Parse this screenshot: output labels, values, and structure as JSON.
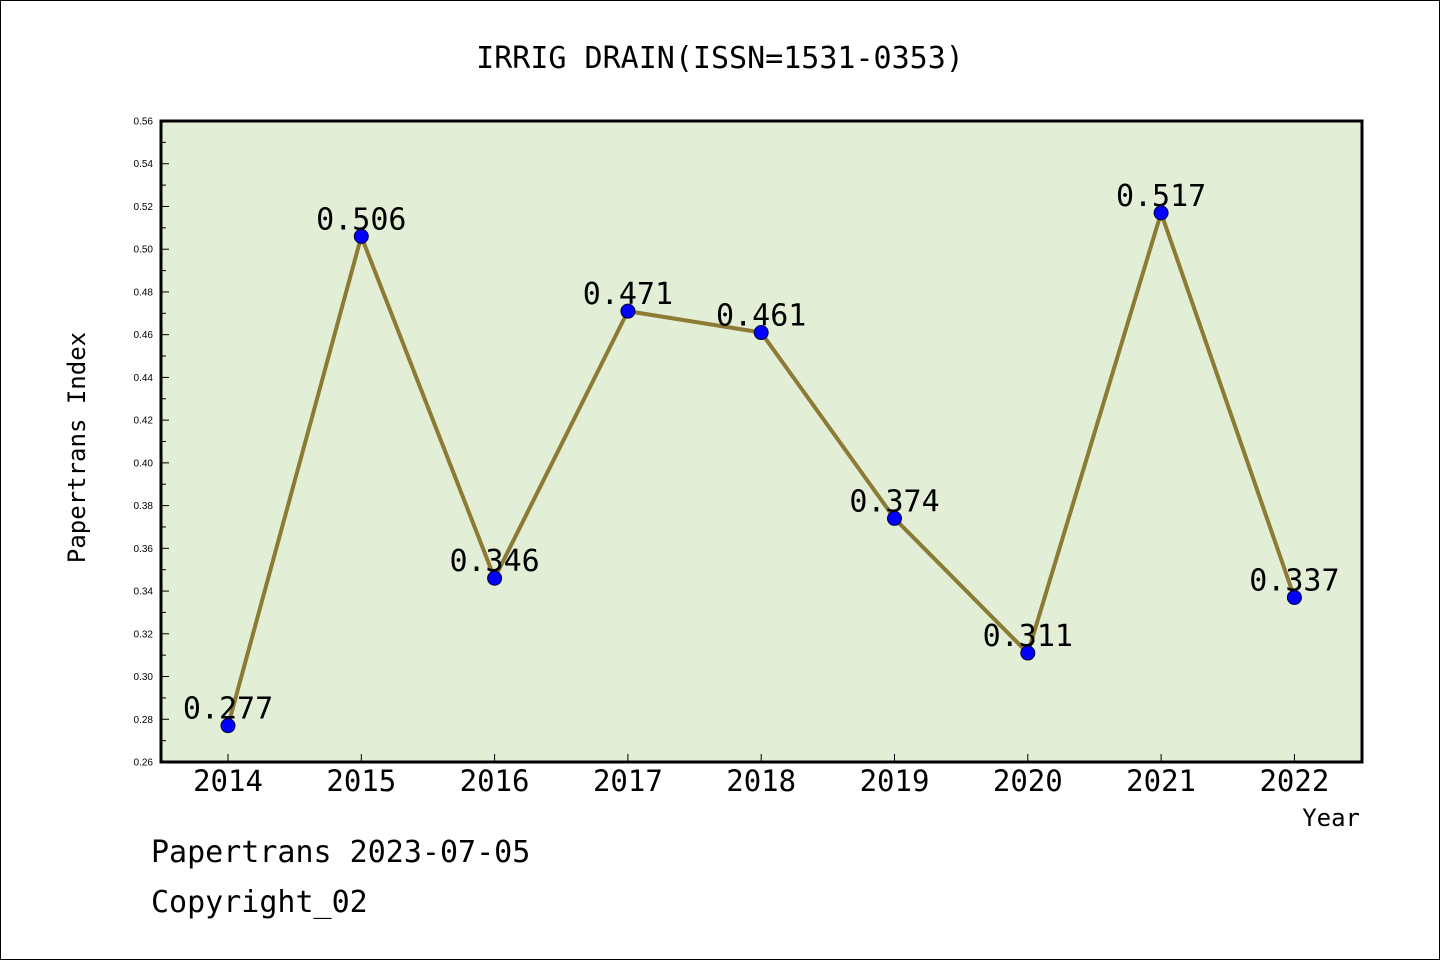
{
  "chart_data": {
    "type": "line",
    "title": "IRRIG DRAIN(ISSN=1531-0353)",
    "xlabel": "Year",
    "ylabel": "Papertrans Index",
    "categories": [
      "2014",
      "2015",
      "2016",
      "2017",
      "2018",
      "2019",
      "2020",
      "2021",
      "2022"
    ],
    "series": [
      {
        "values": [
          0.277,
          0.506,
          0.346,
          0.471,
          0.461,
          0.374,
          0.311,
          0.517,
          0.337
        ],
        "labels": [
          "0.277",
          "0.506",
          "0.346",
          "0.471",
          "0.461",
          "0.374",
          "0.311",
          "0.517",
          "0.337"
        ]
      }
    ],
    "ylim": [
      0.26,
      0.56
    ],
    "yticks": [
      "0.26",
      "0.28",
      "0.30",
      "0.32",
      "0.34",
      "0.36",
      "0.38",
      "0.40",
      "0.42",
      "0.44",
      "0.46",
      "0.48",
      "0.50",
      "0.52",
      "0.54",
      "0.56"
    ],
    "grid": false,
    "colors": {
      "plot_background": "#e2efd6",
      "line": "#8c7a35",
      "marker": "#0000ff"
    }
  },
  "footer": {
    "line1": "Papertrans 2023-07-05",
    "line2": "Copyright_02"
  }
}
